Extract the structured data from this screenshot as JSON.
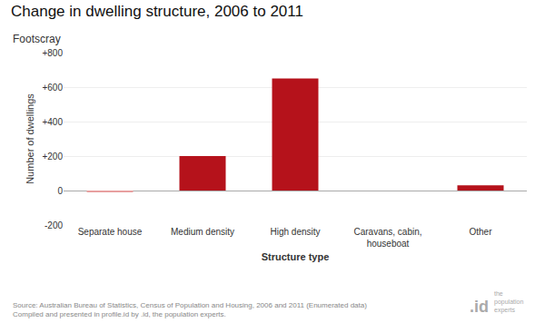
{
  "chart_data": {
    "type": "bar",
    "title": "Change in dwelling structure, 2006 to 2011",
    "subtitle": "Footscray",
    "categories": [
      "Separate house",
      "Medium density",
      "High density",
      "Caravans, cabin,\nhouseboat",
      "Other"
    ],
    "values": [
      -10,
      200,
      650,
      0,
      30
    ],
    "colors": [
      "#e8a0a0",
      "#b5121b",
      "#b5121b",
      "#b5121b",
      "#b5121b"
    ],
    "xlabel": "Structure type",
    "ylabel": "Number of dwellings",
    "ylim": [
      -200,
      800
    ],
    "yticks": [
      -200,
      0,
      {
        "value": 200,
        "label": "+200"
      },
      {
        "value": 400,
        "label": "+400"
      },
      {
        "value": 600,
        "label": "+600"
      },
      {
        "value": 800,
        "label": "+800"
      }
    ],
    "grid": true,
    "annotations": [
      "Source: Australian Bureau of Statistics, Census of Population and Housing, 2006 and 2011 (Enumerated data)\nCompiled and presented in profile.id by .id, the population experts.",
      ".id",
      "the\npopulation\nexperts"
    ]
  }
}
